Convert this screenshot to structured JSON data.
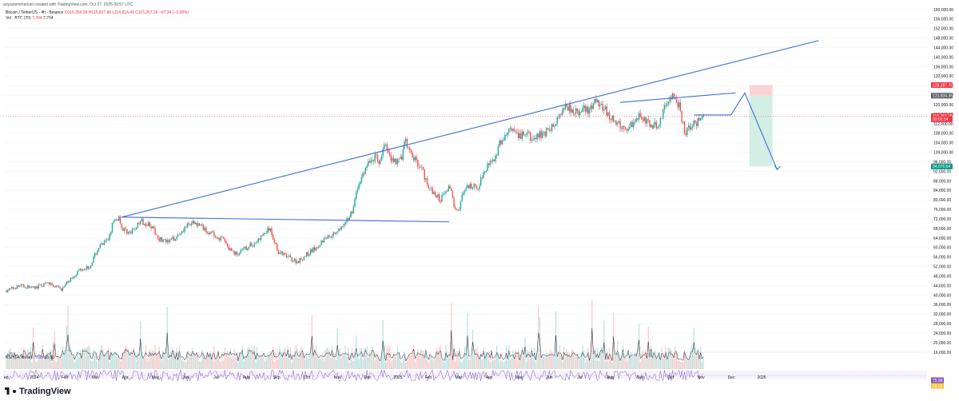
{
  "header": {
    "credit": "anyasiemmanuel created with TradingView.com, Oct 27, 2025 09:57 UTC"
  },
  "legend": {
    "symbol": "Bitcoin / TetherUS · 4h · Binance",
    "open": "O115,354.99",
    "high": "H115,607.48",
    "low": "L114,814.49",
    "close": "C115,267.26",
    "change": "−87.34 (−0.08%)",
    "volume_title": "Vol · BTC (20)",
    "volume_value": "3.394",
    "volume_ma": "2.234"
  },
  "rsi": {
    "title": "RSI (14, close)",
    "value": "75.88",
    "ma": "63.50"
  },
  "colors": {
    "up": "#26a69a",
    "down": "#ef5350",
    "line": "#3a6fd8",
    "rsi": "#7e57c2"
  },
  "chart_data": {
    "type": "candlestick",
    "y_axis": {
      "min": 16000,
      "max": 160000,
      "ticks": [
        "160,000.00",
        "156,000.00",
        "152,000.00",
        "148,000.00",
        "144,000.00",
        "140,000.00",
        "136,000.00",
        "132,000.00",
        "128,000.00",
        "124,000.00",
        "120,000.00",
        "116,000.00",
        "112,000.00",
        "108,000.00",
        "104,000.00",
        "100,000.00",
        "96,000.00",
        "92,000.00",
        "88,000.00",
        "84,000.00",
        "80,000.00",
        "76,000.00",
        "72,000.00",
        "68,000.00",
        "64,000.00",
        "60,000.00",
        "56,000.00",
        "52,000.00",
        "48,000.00",
        "44,000.00",
        "40,000.00",
        "36,000.00",
        "32,000.00",
        "28,000.00",
        "24,000.00",
        "20,000.00",
        "16,000.00"
      ]
    },
    "x_axis": {
      "ticks": [
        "ec",
        "2024",
        "Feb",
        "Mar",
        "Apr",
        "May",
        "Jun",
        "Jul",
        "Aug",
        "Sep",
        "Oct",
        "Nov",
        "Dec",
        "2025",
        "Feb",
        "Mar",
        "Apr",
        "May",
        "Jun",
        "Jul",
        "Aug",
        "Sep",
        "Oct",
        "Nov",
        "Dec",
        "2026"
      ]
    },
    "price_path": [
      [
        0,
        42000
      ],
      [
        3,
        44000
      ],
      [
        6,
        43000
      ],
      [
        9,
        45000
      ],
      [
        12,
        42500
      ],
      [
        14,
        47000
      ],
      [
        16,
        51000
      ],
      [
        18,
        52000
      ],
      [
        20,
        60000
      ],
      [
        22,
        63000
      ],
      [
        23,
        70000
      ],
      [
        24.5,
        73000
      ],
      [
        25,
        68000
      ],
      [
        27,
        66000
      ],
      [
        29,
        71000
      ],
      [
        31,
        70000
      ],
      [
        33,
        64000
      ],
      [
        35,
        62000
      ],
      [
        37,
        65000
      ],
      [
        39,
        69000
      ],
      [
        41,
        70500
      ],
      [
        43,
        68000
      ],
      [
        45,
        65000
      ],
      [
        47,
        63500
      ],
      [
        48,
        60000
      ],
      [
        50,
        57000
      ],
      [
        52,
        60000
      ],
      [
        54,
        62000
      ],
      [
        56,
        66000
      ],
      [
        57,
        68000
      ],
      [
        58,
        63000
      ],
      [
        59,
        58000
      ],
      [
        61,
        56000
      ],
      [
        63,
        54000
      ],
      [
        65,
        57000
      ],
      [
        67,
        60000
      ],
      [
        69,
        64000
      ],
      [
        71,
        66000
      ],
      [
        72,
        68000
      ],
      [
        73,
        68500
      ],
      [
        74,
        72000
      ],
      [
        75,
        76000
      ],
      [
        76,
        84000
      ],
      [
        77,
        90000
      ],
      [
        78,
        94000
      ],
      [
        79,
        97000
      ],
      [
        80,
        98000
      ],
      [
        81,
        96000
      ],
      [
        82,
        104000
      ],
      [
        83,
        98000
      ],
      [
        84,
        97000
      ],
      [
        85,
        96000
      ],
      [
        86,
        100000
      ],
      [
        86.5,
        106000
      ],
      [
        87,
        101000
      ],
      [
        88,
        98000
      ],
      [
        89,
        96000
      ],
      [
        90,
        93000
      ],
      [
        91,
        88000
      ],
      [
        92,
        84000
      ],
      [
        93,
        82000
      ],
      [
        94,
        80000
      ],
      [
        95,
        84000
      ],
      [
        96,
        86000
      ],
      [
        97,
        78000
      ],
      [
        98,
        76000
      ],
      [
        99,
        83000
      ],
      [
        100,
        85000
      ],
      [
        101,
        86000
      ],
      [
        102,
        84000
      ],
      [
        103,
        90000
      ],
      [
        104,
        94000
      ],
      [
        105,
        97000
      ],
      [
        106,
        98000
      ],
      [
        107,
        104000
      ],
      [
        108,
        106000
      ],
      [
        109,
        110000
      ],
      [
        110,
        108000
      ],
      [
        111,
        106000
      ],
      [
        112,
        108000
      ],
      [
        113,
        107000
      ],
      [
        114,
        105000
      ],
      [
        115,
        106500
      ],
      [
        116,
        108000
      ],
      [
        117,
        109000
      ],
      [
        118,
        110000
      ],
      [
        119,
        112000
      ],
      [
        120,
        117000
      ],
      [
        121,
        120000
      ],
      [
        122,
        119000
      ],
      [
        123,
        118000
      ],
      [
        124,
        116000
      ],
      [
        125,
        118000
      ],
      [
        126,
        117000
      ],
      [
        127,
        119000
      ],
      [
        128,
        122000
      ],
      [
        129,
        120000
      ],
      [
        130,
        117000
      ],
      [
        131,
        114000
      ],
      [
        132,
        112000
      ],
      [
        133,
        111000
      ],
      [
        134,
        110000
      ],
      [
        135,
        111000
      ],
      [
        136,
        113000
      ],
      [
        137,
        116000
      ],
      [
        138,
        115000
      ],
      [
        139,
        112000
      ],
      [
        140,
        110000
      ],
      [
        141,
        112000
      ],
      [
        142,
        114000
      ],
      [
        143,
        121000
      ],
      [
        144,
        124000
      ],
      [
        145,
        122000
      ],
      [
        146,
        118000
      ],
      [
        147,
        108000
      ],
      [
        148,
        110000
      ],
      [
        149,
        112000
      ],
      [
        150,
        113000
      ],
      [
        151,
        115267
      ]
    ],
    "x_span": [
      0,
      151
    ],
    "trendlines": [
      {
        "name": "rising-trendline",
        "from": [
          25,
          72800
        ],
        "to": [
          176,
          147000
        ]
      },
      {
        "name": "horizontal-support",
        "from": [
          25,
          72800
        ],
        "to": [
          96,
          70800
        ]
      },
      {
        "name": "upper-range-line",
        "from": [
          133,
          121000
        ],
        "to": [
          158,
          125000
        ]
      },
      {
        "name": "small-horizontal",
        "from": [
          149,
          115700
        ],
        "to": [
          157,
          115700
        ]
      }
    ],
    "projection": [
      [
        157,
        115700
      ],
      [
        160,
        125000
      ],
      [
        167,
        92800
      ]
    ],
    "position_box": {
      "x0": 161,
      "x1": 166,
      "entry": 123834.35,
      "target": 94076.64,
      "stop": 128287.75
    },
    "price_labels": [
      {
        "value": 128287.75,
        "text": "128,287.75",
        "color": "#f23645"
      },
      {
        "value": 123834.35,
        "text": "123,834.35",
        "color": "#5d606b"
      },
      {
        "value": 115267.26,
        "text": "115,267.26",
        "color": "#f23645"
      },
      {
        "value": 113900,
        "text": "00:02:14",
        "color": "#f23645"
      },
      {
        "value": 94076.64,
        "text": "94,076.64",
        "color": "#089981"
      }
    ]
  }
}
